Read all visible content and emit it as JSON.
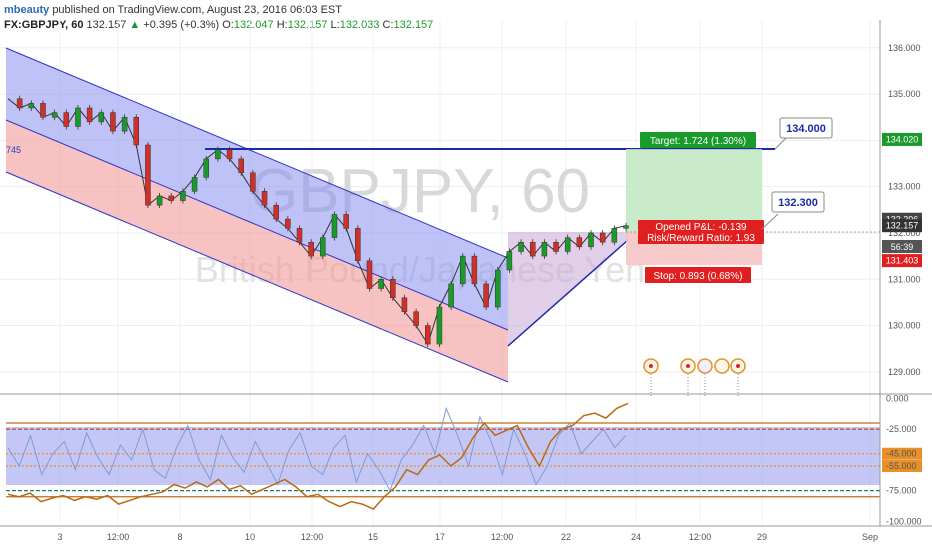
{
  "header": {
    "author": "mbeauty",
    "published": "published on TradingView.com, August 23, 2016 06:03 EST"
  },
  "ohlc": {
    "symbol": "FX:GBPJPY, 60",
    "last": "132.157",
    "change": "+0.395 (+0.3%)",
    "o_label": "O:",
    "o": "132.047",
    "h_label": "H:",
    "h": "132.157",
    "l_label": "L:",
    "l": "132.033",
    "c_label": "C:",
    "c": "132.157"
  },
  "watermark": {
    "title": "GBPJPY, 60",
    "subtitle": "British Pound/Japanese Yen"
  },
  "colors": {
    "up": "#1a9a2a",
    "down": "#d0302a",
    "channel_upper": "#8a90ee",
    "channel_lower": "#f29a9a",
    "target_zone": "#bfe8bf",
    "stop_zone": "#f6c2c2",
    "rsi": "#e8902a",
    "osc_blue": "#7f9ad6"
  },
  "chart_data": [
    {
      "type": "line",
      "title": "FX:GBPJPY, 60",
      "ylim": [
        128.5,
        136.6
      ],
      "x_tick_labels": [
        "3",
        "12:00",
        "8",
        "10",
        "12:00",
        "15",
        "17",
        "12:00",
        "22",
        "24",
        "12:00",
        "29",
        "Sep"
      ],
      "y_ticks": [
        129.0,
        130.0,
        131.0,
        132.0,
        133.0,
        134.0,
        135.0,
        136.0
      ],
      "y_tick_labels": [
        "129.000",
        "130.000",
        "131.000",
        "132.000",
        "133.000",
        "134.000",
        "135.000",
        "136.000"
      ],
      "series": [
        {
          "values": [
            134.9,
            134.7,
            134.8,
            134.5,
            134.6,
            134.3,
            134.7,
            134.4,
            134.6,
            134.2,
            134.5,
            133.9,
            132.6,
            132.8,
            132.7,
            132.9,
            133.2,
            133.6,
            133.8,
            133.6,
            133.3,
            132.9,
            132.6,
            132.3,
            132.1,
            131.8,
            131.5,
            131.9,
            132.4,
            132.1,
            131.4,
            130.8,
            131.0,
            130.6,
            130.3,
            130.0,
            129.6,
            130.4,
            130.9,
            131.5,
            130.9,
            130.4,
            131.2,
            131.6,
            131.8,
            131.5,
            131.8,
            131.6,
            131.9,
            131.7,
            132.0,
            131.8,
            132.1,
            132.157
          ]
        }
      ],
      "annotations": [
        {
          "label": "Target: 1.724 (1.30%)",
          "value": 134.02
        },
        {
          "label": "Opened P&L: -0.139",
          "value": 132.296
        },
        {
          "label": "Risk/Reward Ratio: 1.93"
        },
        {
          "label": "Stop: 0.893 (0.68%)",
          "value": 131.403
        },
        {
          "label": "134.000",
          "value": 134.0
        },
        {
          "label": "132.300",
          "value": 132.3
        },
        {
          "label": "745"
        }
      ],
      "price_tags": [
        {
          "value": 134.02,
          "label": "134.020",
          "color": "#1a9a2a"
        },
        {
          "value": 132.296,
          "label": "132.296",
          "color": "#444444"
        },
        {
          "value": 132.157,
          "label": "132.157",
          "color": "#333333"
        },
        {
          "value": 131.403,
          "label": "131.403",
          "color": "#e02020"
        }
      ],
      "countdown": "56:39",
      "grid": true
    },
    {
      "type": "line",
      "ylim": [
        -103,
        2
      ],
      "y_ticks": [
        0,
        -25,
        -45,
        -55,
        -75,
        -100
      ],
      "y_tick_labels": [
        "0.000",
        "-25.000",
        "-45.000",
        "-55.000",
        "-75.000",
        "-100.000"
      ],
      "series": [
        {
          "values": [
            -78,
            -80,
            -77,
            -84,
            -81,
            -79,
            -83,
            -80,
            -82,
            -79,
            -86,
            -83,
            -80,
            -78,
            -76,
            -70,
            -73,
            -68,
            -72,
            -66,
            -74,
            -71,
            -78,
            -74,
            -70,
            -66,
            -72,
            -80,
            -78,
            -84,
            -88,
            -84,
            -86,
            -90,
            -80,
            -72,
            -58,
            -62,
            -50,
            -46,
            -55,
            -48,
            -32,
            -20,
            -30,
            -26,
            -22,
            -40,
            -55,
            -35,
            -25,
            -22,
            -14,
            -12,
            -16,
            -8,
            -4
          ]
        },
        {
          "values": [
            -40,
            -55,
            -30,
            -62,
            -45,
            -35,
            -58,
            -28,
            -48,
            -62,
            -38,
            -50,
            -25,
            -58,
            -65,
            -40,
            -22,
            -50,
            -66,
            -30,
            -48,
            -60,
            -35,
            -52,
            -70,
            -42,
            -28,
            -55,
            -62,
            -40,
            -30,
            -68,
            -45,
            -58,
            -75,
            -50,
            -38,
            -22,
            -45,
            -8,
            -30,
            -55,
            -15,
            -35,
            -62,
            -25,
            -45,
            -70,
            -55,
            -30,
            -20,
            -45,
            -35,
            -25,
            -40,
            -30
          ]
        }
      ],
      "grid": true
    }
  ]
}
